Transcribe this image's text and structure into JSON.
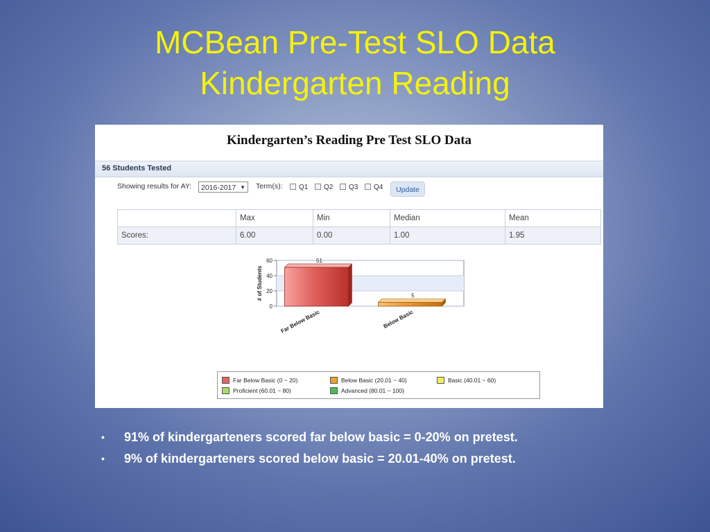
{
  "slide": {
    "title_line1": "MCBean Pre-Test SLO Data",
    "title_line2": "Kindergarten Reading"
  },
  "panel": {
    "heading": "Kindergarten’s Reading Pre Test SLO Data",
    "students_tested": "56 Students Tested",
    "filters": {
      "ay_label": "Showing results for AY:",
      "ay_value": "2016-2017",
      "terms_label": "Term(s):",
      "terms": [
        "Q1",
        "Q2",
        "Q3",
        "Q4"
      ],
      "update_label": "Update"
    },
    "stats": {
      "headers": [
        "",
        "Max",
        "Min",
        "Median",
        "Mean"
      ],
      "row": [
        "Scores:",
        "6.00",
        "0.00",
        "1.00",
        "1.95"
      ]
    }
  },
  "chart_data": {
    "type": "bar",
    "categories": [
      "Far Below Basic",
      "Below Basic"
    ],
    "values": [
      51,
      5
    ],
    "colors": [
      "#d9534f",
      "#e8952e"
    ],
    "title": "",
    "xlabel": "",
    "ylabel": "# of Students",
    "ylim": [
      0,
      60
    ],
    "yticks": [
      "0",
      "20",
      "40",
      "60"
    ],
    "data_labels": [
      "51",
      "5"
    ],
    "grid": true
  },
  "legend": [
    {
      "label": "Far Below Basic (0 ~ 20)",
      "color": "#e06666"
    },
    {
      "label": "Below Basic (20.01 ~ 40)",
      "color": "#f0a030"
    },
    {
      "label": "Basic (40.01 ~ 60)",
      "color": "#f5f05a"
    },
    {
      "label": "Proficient (60.01 ~ 80)",
      "color": "#a4dd6a"
    },
    {
      "label": "Advanced (80.01 ~ 100)",
      "color": "#4dbd55"
    }
  ],
  "bullets": [
    "91% of kindergarteners scored far below basic = 0-20% on pretest.",
    "9% of kindergarteners scored  below basic = 20.01-40% on pretest."
  ],
  "bullet_marker": "•"
}
